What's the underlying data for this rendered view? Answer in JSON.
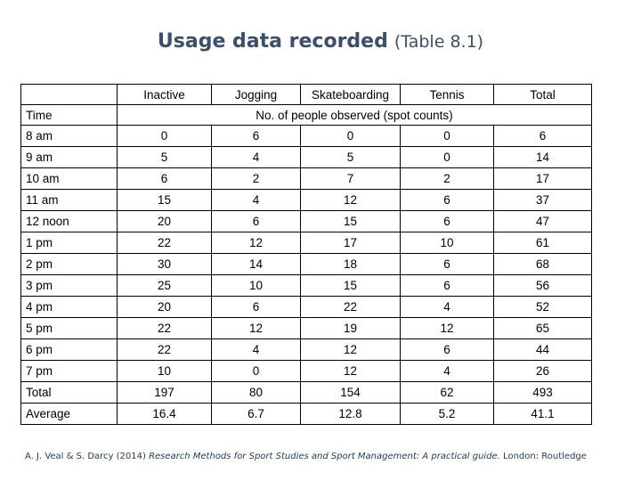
{
  "title": {
    "main": "Usage data recorded",
    "sub": "(Table 8.1)"
  },
  "table": {
    "activity_headers": [
      "Inactive",
      "Jogging",
      "Skateboarding",
      "Tennis",
      "Total"
    ],
    "time_label": "Time",
    "spanning_label": "No. of people observed (spot counts)",
    "rows": [
      {
        "time": "8 am",
        "values": [
          "0",
          "6",
          "0",
          "0",
          "6"
        ]
      },
      {
        "time": "9 am",
        "values": [
          "5",
          "4",
          "5",
          "0",
          "14"
        ]
      },
      {
        "time": "10 am",
        "values": [
          "6",
          "2",
          "7",
          "2",
          "17"
        ]
      },
      {
        "time": "11 am",
        "values": [
          "15",
          "4",
          "12",
          "6",
          "37"
        ]
      },
      {
        "time": "12 noon",
        "values": [
          "20",
          "6",
          "15",
          "6",
          "47"
        ]
      },
      {
        "time": "1 pm",
        "values": [
          "22",
          "12",
          "17",
          "10",
          "61"
        ]
      },
      {
        "time": "2 pm",
        "values": [
          "30",
          "14",
          "18",
          "6",
          "68"
        ]
      },
      {
        "time": "3 pm",
        "values": [
          "25",
          "10",
          "15",
          "6",
          "56"
        ]
      },
      {
        "time": "4 pm",
        "values": [
          "20",
          "6",
          "22",
          "4",
          "52"
        ]
      },
      {
        "time": "5 pm",
        "values": [
          "22",
          "12",
          "19",
          "12",
          "65"
        ]
      },
      {
        "time": "6 pm",
        "values": [
          "22",
          "4",
          "12",
          "6",
          "44"
        ]
      },
      {
        "time": "7 pm",
        "values": [
          "10",
          "0",
          "12",
          "4",
          "26"
        ]
      },
      {
        "time": "Total",
        "values": [
          "197",
          "80",
          "154",
          "62",
          "493"
        ]
      },
      {
        "time": "Average",
        "values": [
          "16.4",
          "6.7",
          "12.8",
          "5.2",
          "41.1"
        ]
      }
    ]
  },
  "citation": {
    "authors": "A. J. Veal & S. Darcy (2014) ",
    "book": "Research Methods for Sport Studies and Sport Management: A practical guide.",
    "publisher": " London: Routledge"
  }
}
